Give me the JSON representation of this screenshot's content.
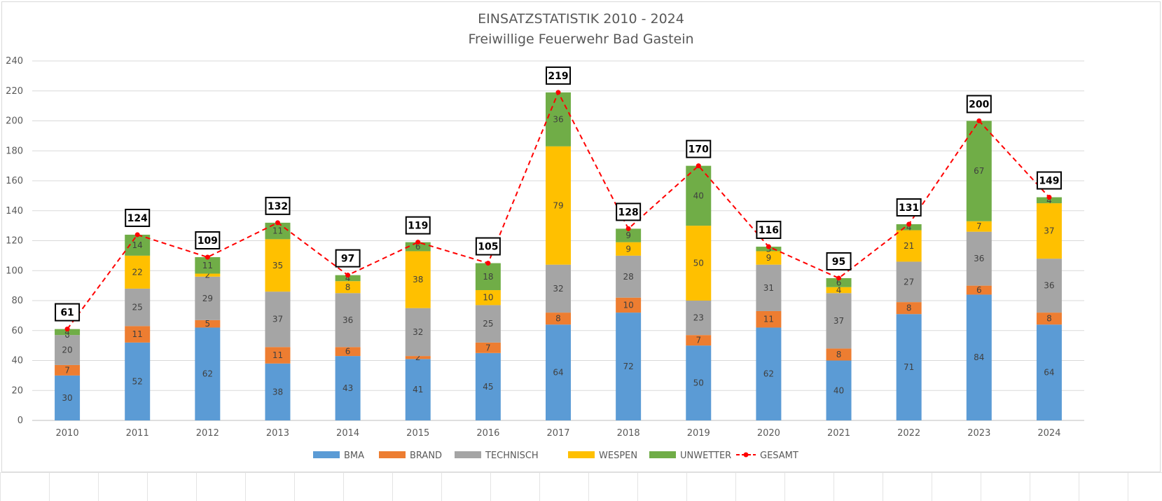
{
  "chart_data": {
    "type": "bar",
    "stacked": true,
    "title": "EINSATZSTATISTIK 2010 - 2024",
    "subtitle": "Freiwillige Feuerwehr Bad Gastein",
    "categories": [
      "2010",
      "2011",
      "2012",
      "2013",
      "2014",
      "2015",
      "2016",
      "2017",
      "2018",
      "2019",
      "2020",
      "2021",
      "2022",
      "2023",
      "2024"
    ],
    "ylim": [
      0,
      240
    ],
    "yticks": [
      0,
      20,
      40,
      60,
      80,
      100,
      120,
      140,
      160,
      180,
      200,
      220,
      240
    ],
    "grid": true,
    "legend_position": "bottom",
    "series": [
      {
        "name": "BMA",
        "color": "#5b9bd5",
        "values": [
          30,
          52,
          62,
          38,
          43,
          41,
          45,
          64,
          72,
          50,
          62,
          40,
          71,
          84,
          64
        ]
      },
      {
        "name": "BRAND",
        "color": "#ed7d31",
        "values": [
          7,
          11,
          5,
          11,
          6,
          2,
          7,
          8,
          10,
          7,
          11,
          8,
          8,
          6,
          8
        ]
      },
      {
        "name": "TECHNISCH",
        "color": "#a5a5a5",
        "values": [
          20,
          25,
          29,
          37,
          36,
          32,
          25,
          32,
          28,
          23,
          31,
          37,
          27,
          36,
          36
        ]
      },
      {
        "name": "WESPEN",
        "color": "#ffc000",
        "values": [
          0,
          22,
          2,
          35,
          8,
          38,
          10,
          79,
          9,
          50,
          9,
          4,
          21,
          7,
          37
        ]
      },
      {
        "name": "UNWETTER",
        "color": "#70ad47",
        "values": [
          4,
          14,
          11,
          11,
          4,
          6,
          18,
          36,
          9,
          40,
          3,
          6,
          4,
          67,
          4
        ]
      }
    ],
    "total": {
      "name": "GESAMT",
      "color": "#ff0000",
      "style": "dashed",
      "values": [
        61,
        124,
        109,
        132,
        97,
        119,
        105,
        219,
        128,
        170,
        116,
        95,
        131,
        200,
        149
      ]
    }
  }
}
